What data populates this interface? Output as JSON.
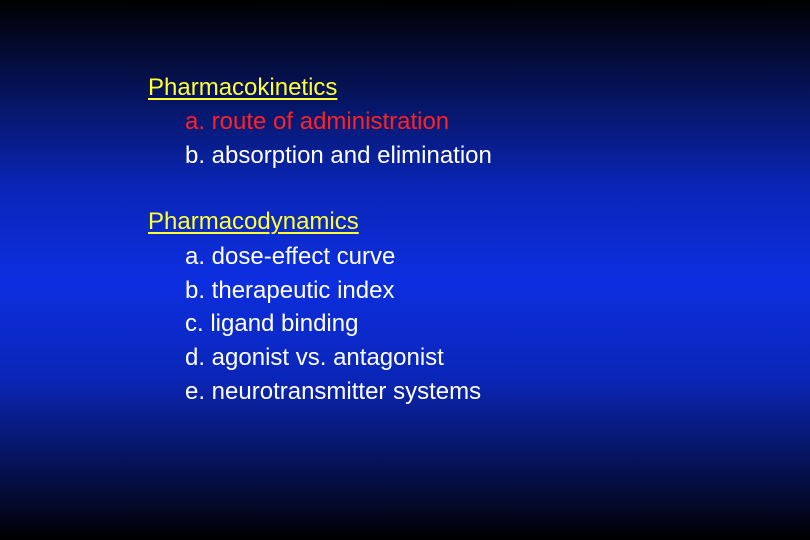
{
  "sections": [
    {
      "heading": "Pharmacokinetics",
      "items": [
        "a. route of administration",
        "b. absorption and elimination"
      ]
    },
    {
      "heading": "Pharmacodynamics",
      "items": [
        "a. dose-effect curve",
        "b. therapeutic index",
        "c. ligand binding",
        "d. agonist vs. antagonist",
        "e. neurotransmitter systems"
      ]
    }
  ]
}
